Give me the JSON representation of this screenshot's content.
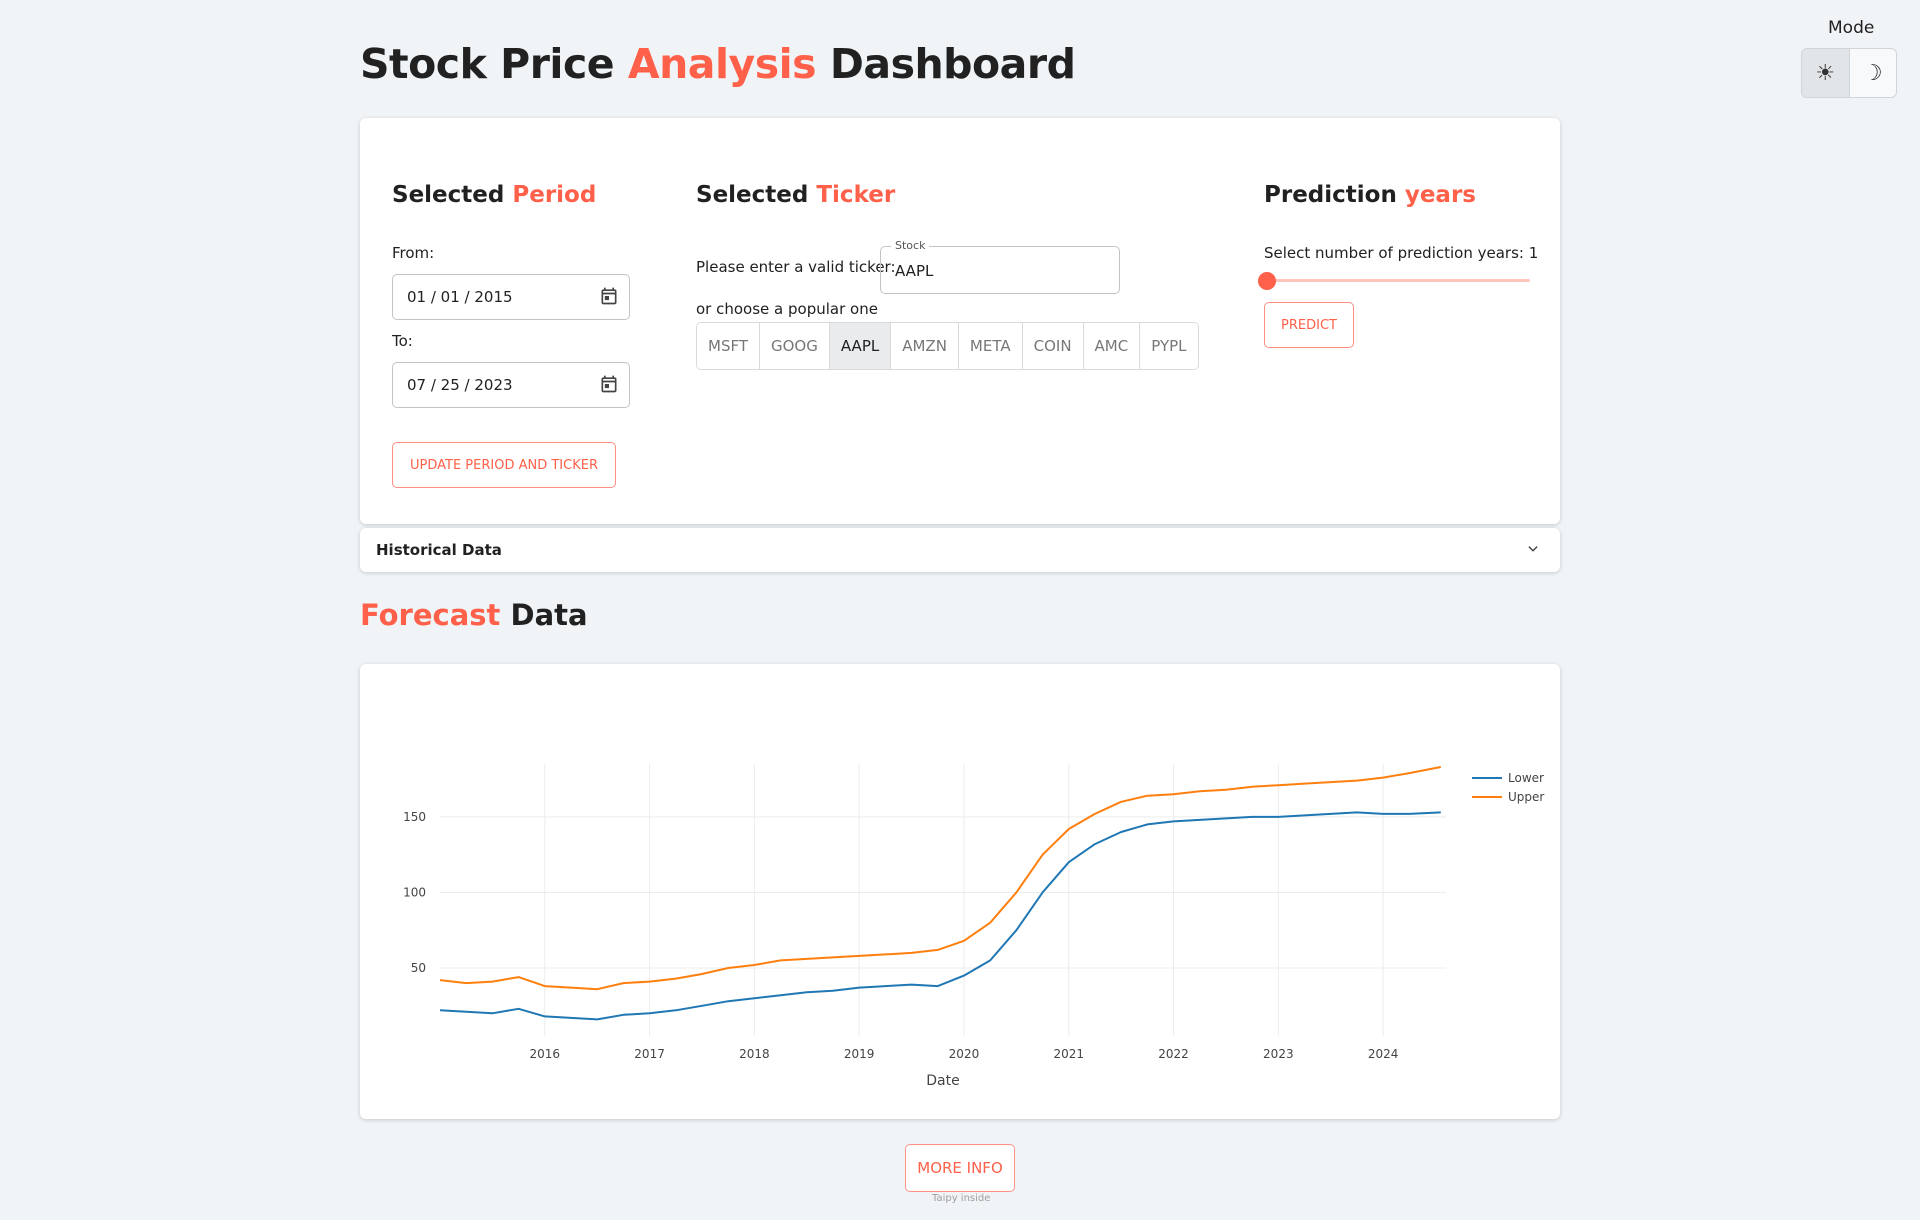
{
  "header": {
    "title_part1": "Stock Price ",
    "title_accent": "Analysis",
    "title_part2": " Dashboard",
    "mode_label": "Mode",
    "mode_light_icon": "sun-icon",
    "mode_dark_icon": "moon-icon",
    "mode_selected": "light"
  },
  "period": {
    "heading": "Selected ",
    "heading_accent": "Period",
    "from_label": "From:",
    "from_value": "01 / 01 / 2015",
    "to_label": "To:",
    "to_value": "07 / 25 / 2023",
    "update_button": "UPDATE PERIOD AND TICKER"
  },
  "ticker": {
    "heading": "Selected ",
    "heading_accent": "Ticker",
    "prompt": "Please enter a valid ticker:",
    "input_legend": "Stock",
    "input_value": "AAPL",
    "popular_label": "or choose a popular one",
    "options": [
      "MSFT",
      "GOOG",
      "AAPL",
      "AMZN",
      "META",
      "COIN",
      "AMC",
      "PYPL"
    ],
    "selected": "AAPL"
  },
  "prediction": {
    "heading": "Prediction ",
    "heading_accent": "years",
    "slider_label": "Select number of prediction years: 1",
    "slider_value": 1,
    "slider_min": 1,
    "slider_max": 10,
    "predict_button": "PREDICT"
  },
  "historical": {
    "label": "Historical Data"
  },
  "forecast": {
    "title_accent": "Forecast",
    "title_rest": " Data"
  },
  "footer": {
    "more_info_button": "MORE INFO",
    "note": "Taipy inside"
  },
  "colors": {
    "accent": "#ff6049",
    "lower": "#1f77b4",
    "upper": "#ff7f0e"
  },
  "chart_data": {
    "type": "line",
    "title": "",
    "xlabel": "Date",
    "ylabel": "",
    "xlim": [
      2015.0,
      2024.6
    ],
    "ylim": [
      5,
      185
    ],
    "x_ticks": [
      2016,
      2017,
      2018,
      2019,
      2020,
      2021,
      2022,
      2023,
      2024
    ],
    "y_ticks": [
      50,
      100,
      150
    ],
    "legend_position": "top-right",
    "x": [
      2015.0,
      2015.25,
      2015.5,
      2015.75,
      2016.0,
      2016.25,
      2016.5,
      2016.75,
      2017.0,
      2017.25,
      2017.5,
      2017.75,
      2018.0,
      2018.25,
      2018.5,
      2018.75,
      2019.0,
      2019.25,
      2019.5,
      2019.75,
      2020.0,
      2020.25,
      2020.5,
      2020.75,
      2021.0,
      2021.25,
      2021.5,
      2021.75,
      2022.0,
      2022.25,
      2022.5,
      2022.75,
      2023.0,
      2023.25,
      2023.5,
      2023.75,
      2024.0,
      2024.25,
      2024.55
    ],
    "series": [
      {
        "name": "Lower",
        "color": "#1f77b4",
        "values": [
          22,
          21,
          20,
          23,
          18,
          17,
          16,
          19,
          20,
          22,
          25,
          28,
          30,
          32,
          34,
          35,
          37,
          38,
          39,
          38,
          45,
          55,
          75,
          100,
          120,
          132,
          140,
          145,
          147,
          148,
          149,
          150,
          150,
          151,
          152,
          153,
          152,
          152,
          153
        ]
      },
      {
        "name": "Upper",
        "color": "#ff7f0e",
        "values": [
          42,
          40,
          41,
          44,
          38,
          37,
          36,
          40,
          41,
          43,
          46,
          50,
          52,
          55,
          56,
          57,
          58,
          59,
          60,
          62,
          68,
          80,
          100,
          125,
          142,
          152,
          160,
          164,
          165,
          167,
          168,
          170,
          171,
          172,
          173,
          174,
          176,
          179,
          183
        ]
      }
    ]
  }
}
